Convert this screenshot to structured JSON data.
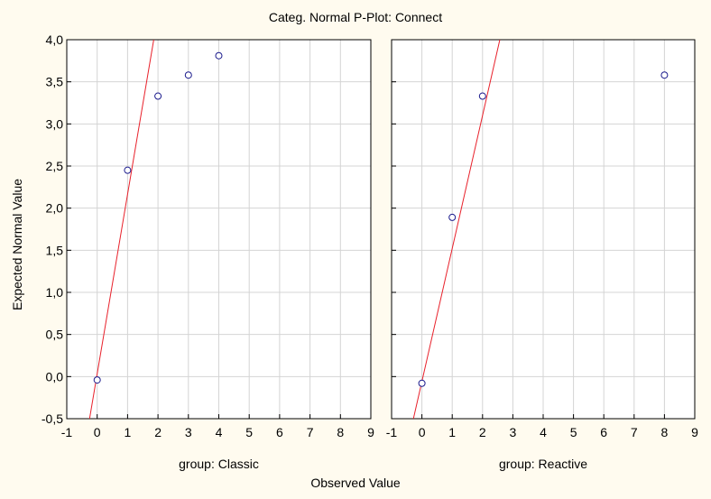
{
  "chart_data": {
    "type": "scatter",
    "title": "Categ. Normal P-Plot:  Connect",
    "xlabel": "Observed Value",
    "ylabel": "Expected Normal Value",
    "xlim": [
      -1,
      9
    ],
    "ylim": [
      -0.5,
      4.0
    ],
    "xticks": [
      "-1",
      "0",
      "1",
      "2",
      "3",
      "4",
      "5",
      "6",
      "7",
      "8",
      "9"
    ],
    "yticks": [
      "4,0",
      "3,5",
      "3,0",
      "2,5",
      "2,0",
      "1,5",
      "1,0",
      "0,5",
      "0,0",
      "-0,5"
    ],
    "grid": true,
    "colors": {
      "line": "#e8212b",
      "marker": "#1a1a8c",
      "grid": "#d4d4d4",
      "plot_bg": "#ffffff",
      "page_bg": "#fffbef"
    },
    "panels": [
      {
        "label": "group: Classic",
        "points": [
          {
            "x": 0,
            "y": -0.04
          },
          {
            "x": 1,
            "y": 2.45
          },
          {
            "x": 2,
            "y": 3.33
          },
          {
            "x": 3,
            "y": 3.58
          },
          {
            "x": 4,
            "y": 3.81
          }
        ],
        "line": [
          {
            "x": -0.25,
            "y": -0.5
          },
          {
            "x": 1.86,
            "y": 4.0
          }
        ]
      },
      {
        "label": "group: Reactive",
        "points": [
          {
            "x": 0,
            "y": -0.08
          },
          {
            "x": 1,
            "y": 1.89
          },
          {
            "x": 2,
            "y": 3.33
          },
          {
            "x": 8,
            "y": 3.58
          }
        ],
        "line": [
          {
            "x": -0.28,
            "y": -0.5
          },
          {
            "x": 2.57,
            "y": 4.0
          }
        ]
      }
    ]
  }
}
